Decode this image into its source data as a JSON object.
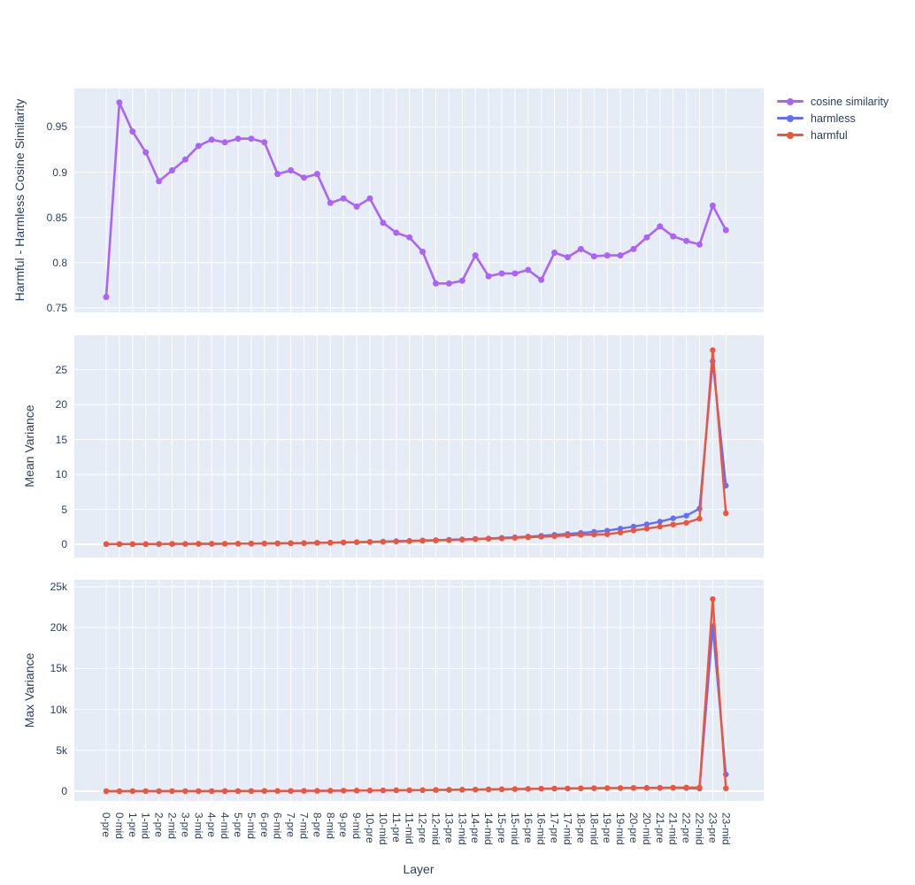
{
  "figure": {
    "plot_bg": "#e5ecf6",
    "grid_color": "#ffffff",
    "text_color": "#2a3f5f"
  },
  "legend": {
    "items": [
      {
        "label": "cosine similarity",
        "color": "#ab63fa"
      },
      {
        "label": "harmless",
        "color": "#636efa"
      },
      {
        "label": "harmful",
        "color": "#ef553b"
      }
    ]
  },
  "xaxis": {
    "title": "Layer",
    "categories": [
      "0-pre",
      "0-mid",
      "1-pre",
      "1-mid",
      "2-pre",
      "2-mid",
      "3-pre",
      "3-mid",
      "4-pre",
      "4-mid",
      "5-pre",
      "5-mid",
      "6-pre",
      "6-mid",
      "7-pre",
      "7-mid",
      "8-pre",
      "8-mid",
      "9-pre",
      "9-mid",
      "10-pre",
      "10-mid",
      "11-pre",
      "11-mid",
      "12-pre",
      "12-mid",
      "13-pre",
      "13-mid",
      "14-pre",
      "14-mid",
      "15-pre",
      "15-mid",
      "16-pre",
      "16-mid",
      "17-pre",
      "17-mid",
      "18-pre",
      "18-mid",
      "19-pre",
      "19-mid",
      "20-pre",
      "20-mid",
      "21-pre",
      "21-mid",
      "22-pre",
      "22-mid",
      "23-pre",
      "23-mid"
    ]
  },
  "chart_data": [
    {
      "type": "line",
      "ylabel": "Harmful - Harmless Cosine Similarity",
      "ytick_values": [
        0.75,
        0.8,
        0.85,
        0.9,
        0.95
      ],
      "ytick_labels": [
        "0.75",
        "0.8",
        "0.85",
        "0.9",
        "0.95"
      ],
      "ylim": [
        0.745,
        0.9925
      ],
      "grid": true,
      "legend_position": "top-right",
      "series": [
        {
          "name": "cosine similarity",
          "color": "#ab63fa",
          "values": [
            0.762,
            0.977,
            0.945,
            0.922,
            0.89,
            0.902,
            0.914,
            0.929,
            0.936,
            0.933,
            0.937,
            0.937,
            0.933,
            0.898,
            0.902,
            0.894,
            0.898,
            0.866,
            0.871,
            0.862,
            0.871,
            0.844,
            0.833,
            0.828,
            0.812,
            0.777,
            0.777,
            0.78,
            0.808,
            0.785,
            0.788,
            0.788,
            0.792,
            0.781,
            0.811,
            0.806,
            0.815,
            0.807,
            0.808,
            0.808,
            0.815,
            0.828,
            0.84,
            0.829,
            0.824,
            0.82,
            0.863,
            0.836
          ]
        }
      ]
    },
    {
      "type": "line",
      "ylabel": "Mean Variance",
      "ytick_values": [
        0,
        5,
        10,
        15,
        20,
        25
      ],
      "ytick_labels": [
        "0",
        "5",
        "10",
        "15",
        "20",
        "25"
      ],
      "ylim": [
        -1.9,
        29.9
      ],
      "grid": true,
      "series": [
        {
          "name": "harmless",
          "color": "#636efa",
          "values": [
            0.02,
            0.02,
            0.03,
            0.03,
            0.04,
            0.05,
            0.05,
            0.06,
            0.07,
            0.08,
            0.09,
            0.1,
            0.12,
            0.14,
            0.16,
            0.18,
            0.21,
            0.24,
            0.27,
            0.31,
            0.35,
            0.39,
            0.44,
            0.49,
            0.54,
            0.59,
            0.65,
            0.71,
            0.77,
            0.84,
            0.92,
            1.0,
            1.1,
            1.22,
            1.35,
            1.48,
            1.62,
            1.78,
            1.95,
            2.24,
            2.53,
            2.87,
            3.25,
            3.71,
            4.09,
            5.1,
            26.2,
            8.4
          ]
        },
        {
          "name": "harmful",
          "color": "#ef553b",
          "values": [
            0.02,
            0.02,
            0.03,
            0.03,
            0.04,
            0.05,
            0.05,
            0.06,
            0.07,
            0.08,
            0.09,
            0.1,
            0.12,
            0.13,
            0.15,
            0.17,
            0.2,
            0.22,
            0.25,
            0.29,
            0.32,
            0.36,
            0.4,
            0.45,
            0.5,
            0.55,
            0.6,
            0.66,
            0.72,
            0.78,
            0.85,
            0.92,
            1.0,
            1.08,
            1.17,
            1.26,
            1.36,
            1.4,
            1.43,
            1.68,
            1.99,
            2.24,
            2.53,
            2.82,
            3.08,
            3.67,
            27.8,
            4.43
          ]
        }
      ]
    },
    {
      "type": "line",
      "ylabel": "Max Variance",
      "ytick_values": [
        0,
        5000,
        10000,
        15000,
        20000,
        25000
      ],
      "ytick_labels": [
        "0",
        "5k",
        "10k",
        "15k",
        "20k",
        "25k"
      ],
      "ylim": [
        -1190,
        25870
      ],
      "grid": true,
      "series": [
        {
          "name": "harmless",
          "color": "#636efa",
          "values": [
            5,
            6,
            7,
            8,
            9,
            10,
            12,
            14,
            16,
            18,
            21,
            24,
            28,
            32,
            37,
            42,
            48,
            55,
            63,
            72,
            82,
            93,
            105,
            118,
            132,
            147,
            163,
            180,
            198,
            217,
            237,
            258,
            280,
            300,
            315,
            330,
            345,
            355,
            365,
            375,
            385,
            390,
            395,
            400,
            380,
            320,
            20200,
            2050
          ]
        },
        {
          "name": "harmful",
          "color": "#ef553b",
          "values": [
            5,
            6,
            7,
            8,
            9,
            10,
            12,
            14,
            16,
            18,
            21,
            24,
            28,
            32,
            37,
            42,
            48,
            55,
            63,
            72,
            82,
            93,
            105,
            118,
            132,
            147,
            163,
            180,
            198,
            217,
            237,
            258,
            280,
            300,
            320,
            340,
            355,
            370,
            385,
            395,
            405,
            415,
            425,
            435,
            450,
            460,
            23500,
            350
          ]
        }
      ]
    }
  ]
}
